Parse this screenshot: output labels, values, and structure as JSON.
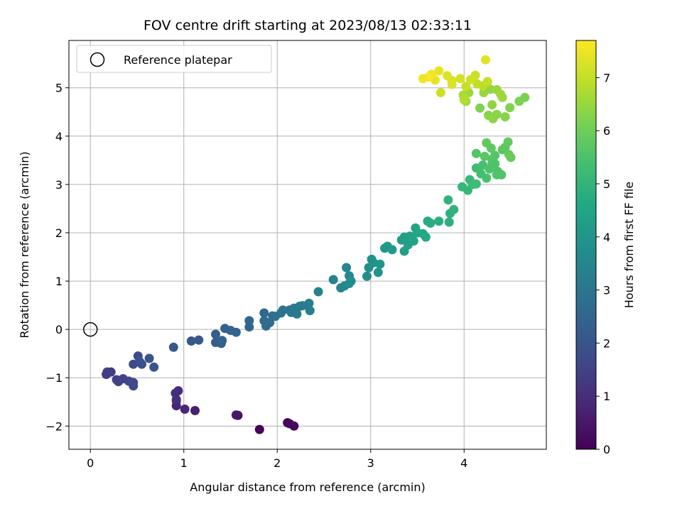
{
  "chart_data": {
    "type": "scatter",
    "title": "FOV centre drift starting at 2023/08/13 02:33:11",
    "xlabel": "Angular distance from reference (arcmin)",
    "ylabel": "Rotation from reference (arcmin)",
    "xlim": [
      -0.23,
      4.88
    ],
    "ylim": [
      -2.48,
      5.98
    ],
    "xticks": [
      0,
      1,
      2,
      3,
      4
    ],
    "yticks": [
      -2,
      -1,
      0,
      1,
      2,
      3,
      4,
      5
    ],
    "xtick_labels": [
      "0",
      "1",
      "2",
      "3",
      "4"
    ],
    "ytick_labels": [
      "−2",
      "−1",
      "0",
      "1",
      "2",
      "3",
      "4",
      "5"
    ],
    "grid": true,
    "legend": {
      "position": "top-left",
      "entries": [
        "Reference platepar"
      ]
    },
    "reference_point": {
      "x": 0,
      "y": 0
    },
    "colorbar": {
      "label": "Hours from first FF file",
      "colormap": "viridis",
      "range": [
        0,
        7.7
      ],
      "ticks": [
        0,
        1,
        2,
        3,
        4,
        5,
        6,
        7
      ],
      "tick_labels": [
        "0",
        "1",
        "2",
        "3",
        "4",
        "5",
        "6",
        "7"
      ]
    },
    "points": [
      [
        1.81,
        -2.07,
        0.05
      ],
      [
        2.11,
        -1.93,
        0.1
      ],
      [
        2.18,
        -2.0,
        0.15
      ],
      [
        2.13,
        -1.95,
        0.2
      ],
      [
        1.58,
        -1.78,
        0.4
      ],
      [
        1.56,
        -1.77,
        0.5
      ],
      [
        1.12,
        -1.68,
        0.7
      ],
      [
        1.01,
        -1.65,
        0.8
      ],
      [
        0.92,
        -1.58,
        0.85
      ],
      [
        0.92,
        -1.48,
        0.9
      ],
      [
        0.94,
        -1.27,
        0.95
      ],
      [
        0.91,
        -1.32,
        1.0
      ],
      [
        0.92,
        -1.45,
        1.05
      ],
      [
        0.17,
        -0.93,
        1.3
      ],
      [
        0.18,
        -0.88,
        1.35
      ],
      [
        0.22,
        -0.88,
        1.4
      ],
      [
        0.28,
        -1.04,
        1.45
      ],
      [
        0.3,
        -1.08,
        1.5
      ],
      [
        0.35,
        -1.02,
        1.55
      ],
      [
        0.41,
        -1.07,
        1.6
      ],
      [
        0.46,
        -1.1,
        1.65
      ],
      [
        0.46,
        -1.17,
        1.7
      ],
      [
        0.46,
        -0.72,
        1.75
      ],
      [
        0.51,
        -0.55,
        1.8
      ],
      [
        0.55,
        -0.72,
        1.85
      ],
      [
        0.53,
        -0.67,
        1.9
      ],
      [
        0.63,
        -0.6,
        1.95
      ],
      [
        0.68,
        -0.78,
        2.0
      ],
      [
        0.89,
        -0.37,
        2.05
      ],
      [
        1.08,
        -0.24,
        2.1
      ],
      [
        1.16,
        -0.22,
        2.15
      ],
      [
        1.34,
        -0.1,
        2.2
      ],
      [
        1.34,
        -0.27,
        2.25
      ],
      [
        1.41,
        -0.23,
        2.3
      ],
      [
        1.4,
        -0.29,
        2.35
      ],
      [
        1.44,
        0.02,
        2.4
      ],
      [
        1.5,
        -0.02,
        2.45
      ],
      [
        1.56,
        -0.06,
        2.5
      ],
      [
        1.7,
        0.05,
        2.55
      ],
      [
        1.7,
        0.18,
        2.6
      ],
      [
        1.86,
        0.34,
        2.6
      ],
      [
        1.86,
        0.18,
        2.65
      ],
      [
        1.88,
        0.07,
        2.7
      ],
      [
        1.92,
        0.14,
        2.75
      ],
      [
        1.95,
        0.28,
        2.8
      ],
      [
        1.98,
        0.27,
        2.85
      ],
      [
        2.04,
        0.34,
        2.9
      ],
      [
        2.06,
        0.4,
        2.95
      ],
      [
        2.13,
        0.4,
        3.0
      ],
      [
        2.15,
        0.35,
        3.05
      ],
      [
        2.18,
        0.44,
        3.1
      ],
      [
        2.21,
        0.32,
        3.1
      ],
      [
        2.24,
        0.48,
        3.15
      ],
      [
        2.27,
        0.49,
        3.2
      ],
      [
        2.34,
        0.54,
        3.25
      ],
      [
        2.35,
        0.39,
        3.3
      ],
      [
        2.44,
        0.78,
        3.35
      ],
      [
        2.6,
        1.03,
        3.4
      ],
      [
        2.68,
        0.86,
        3.45
      ],
      [
        2.72,
        0.9,
        3.5
      ],
      [
        2.74,
        1.28,
        3.55
      ],
      [
        2.77,
        1.11,
        3.6
      ],
      [
        2.77,
        0.95,
        3.65
      ],
      [
        2.79,
        1.0,
        3.7
      ],
      [
        2.96,
        1.1,
        3.75
      ],
      [
        2.98,
        1.28,
        3.8
      ],
      [
        3.01,
        1.45,
        3.85
      ],
      [
        3.03,
        1.38,
        3.9
      ],
      [
        3.08,
        1.18,
        3.95
      ],
      [
        3.1,
        1.35,
        4.0
      ],
      [
        3.15,
        1.68,
        4.05
      ],
      [
        3.18,
        1.72,
        4.1
      ],
      [
        3.23,
        1.65,
        4.15
      ],
      [
        3.33,
        1.85,
        4.2
      ],
      [
        3.36,
        1.91,
        4.25
      ],
      [
        3.36,
        1.62,
        4.3
      ],
      [
        3.4,
        1.75,
        4.35
      ],
      [
        3.42,
        1.93,
        4.4
      ],
      [
        3.46,
        1.83,
        4.45
      ],
      [
        3.48,
        2.1,
        4.5
      ],
      [
        3.5,
        2.0,
        4.55
      ],
      [
        3.56,
        1.98,
        4.6
      ],
      [
        3.59,
        1.91,
        4.65
      ],
      [
        3.61,
        2.24,
        4.7
      ],
      [
        3.64,
        2.2,
        4.75
      ],
      [
        3.73,
        2.24,
        4.8
      ],
      [
        3.84,
        2.22,
        4.85
      ],
      [
        3.85,
        2.4,
        4.9
      ],
      [
        3.83,
        2.68,
        4.95
      ],
      [
        3.89,
        2.48,
        5.0
      ],
      [
        3.98,
        2.95,
        5.05
      ],
      [
        4.04,
        2.88,
        5.1
      ],
      [
        4.06,
        3.1,
        5.15
      ],
      [
        4.09,
        3.0,
        5.2
      ],
      [
        4.13,
        3.01,
        5.25
      ],
      [
        4.13,
        3.34,
        5.3
      ],
      [
        4.18,
        3.22,
        5.35
      ],
      [
        4.2,
        3.4,
        5.4
      ],
      [
        4.24,
        3.13,
        5.45
      ],
      [
        4.27,
        3.32,
        5.5
      ],
      [
        4.3,
        3.45,
        5.55
      ],
      [
        4.33,
        3.6,
        5.6
      ],
      [
        4.35,
        3.2,
        5.6
      ],
      [
        4.38,
        3.22,
        5.65
      ],
      [
        4.41,
        3.72,
        5.7
      ],
      [
        4.44,
        3.77,
        5.75
      ],
      [
        4.47,
        3.88,
        5.8
      ],
      [
        4.48,
        3.62,
        5.85
      ],
      [
        4.5,
        3.56,
        5.9
      ],
      [
        4.13,
        3.64,
        5.6
      ],
      [
        4.22,
        3.58,
        5.7
      ],
      [
        4.24,
        3.86,
        5.8
      ],
      [
        4.29,
        3.75,
        5.75
      ],
      [
        4.3,
        3.52,
        5.65
      ],
      [
        4.33,
        3.43,
        5.55
      ],
      [
        4.36,
        3.27,
        5.5
      ],
      [
        4.4,
        3.2,
        5.55
      ],
      [
        4.17,
        4.58,
        6.2
      ],
      [
        4.26,
        4.43,
        6.3
      ],
      [
        4.31,
        4.36,
        6.4
      ],
      [
        4.35,
        4.45,
        6.35
      ],
      [
        4.44,
        4.4,
        6.3
      ],
      [
        4.49,
        4.59,
        6.25
      ],
      [
        4.59,
        4.72,
        6.2
      ],
      [
        4.65,
        4.8,
        6.15
      ],
      [
        4.02,
        4.72,
        6.6
      ],
      [
        4.05,
        4.9,
        6.55
      ],
      [
        3.99,
        4.85,
        6.7
      ],
      [
        4.0,
        4.75,
        6.8
      ],
      [
        4.21,
        4.9,
        6.5
      ],
      [
        4.28,
        4.97,
        6.45
      ],
      [
        4.3,
        4.65,
        6.4
      ],
      [
        4.35,
        4.96,
        6.5
      ],
      [
        4.39,
        4.87,
        6.6
      ],
      [
        4.41,
        4.8,
        6.55
      ],
      [
        4.2,
        5.04,
        6.9
      ],
      [
        4.25,
        5.13,
        7.0
      ],
      [
        4.14,
        5.08,
        6.95
      ],
      [
        4.12,
        5.26,
        7.1
      ],
      [
        4.07,
        5.17,
        7.15
      ],
      [
        4.02,
        5.03,
        7.05
      ],
      [
        3.96,
        5.19,
        7.2
      ],
      [
        3.87,
        5.15,
        7.25
      ],
      [
        3.82,
        5.25,
        7.3
      ],
      [
        3.73,
        5.35,
        7.45
      ],
      [
        3.69,
        5.16,
        7.4
      ],
      [
        3.65,
        5.28,
        7.55
      ],
      [
        3.62,
        5.22,
        7.65
      ],
      [
        3.56,
        5.19,
        7.5
      ],
      [
        3.75,
        4.9,
        7.1
      ],
      [
        3.87,
        5.07,
        7.3
      ],
      [
        4.23,
        5.58,
        7.35
      ]
    ]
  }
}
